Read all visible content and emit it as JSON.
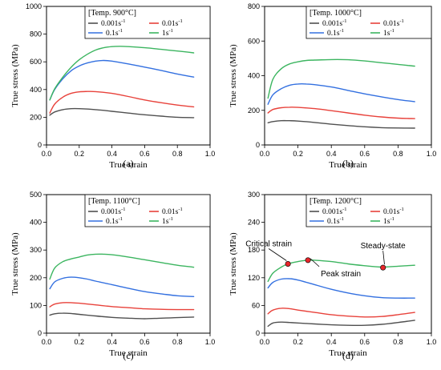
{
  "colors": {
    "0.001": "#505050",
    "0.01": "#e8423b",
    "0.1": "#3370e0",
    "1": "#3cb560",
    "marker": "#e8262b"
  },
  "chart_data": [
    {
      "type": "line",
      "panel_label": "(a)",
      "xlabel": "True strain",
      "ylabel": "True stress (MPa)",
      "xlim": [
        0.0,
        1.0
      ],
      "ylim": [
        0,
        1000
      ],
      "xticks": [
        "0.0",
        "0.2",
        "0.4",
        "0.6",
        "0.8",
        "1.0"
      ],
      "yticks": [
        "0",
        "200",
        "400",
        "600",
        "800",
        "1000"
      ],
      "grid": false,
      "legend": {
        "title": "[Temp. 900°C]",
        "placement": "top-right",
        "entries": [
          "0.001s",
          "0.01s",
          "0.1s",
          "1s"
        ]
      },
      "series": [
        {
          "name": "0.001s⁻¹",
          "color_key": "0.001",
          "x": [
            0.02,
            0.05,
            0.1,
            0.15,
            0.2,
            0.3,
            0.4,
            0.5,
            0.6,
            0.7,
            0.8,
            0.9
          ],
          "y": [
            215,
            238,
            255,
            262,
            262,
            255,
            243,
            230,
            218,
            208,
            200,
            197
          ]
        },
        {
          "name": "0.01s⁻¹",
          "color_key": "0.01",
          "x": [
            0.02,
            0.05,
            0.1,
            0.15,
            0.2,
            0.25,
            0.3,
            0.4,
            0.5,
            0.6,
            0.7,
            0.8,
            0.9
          ],
          "y": [
            230,
            295,
            345,
            372,
            383,
            386,
            385,
            372,
            350,
            325,
            305,
            288,
            275
          ]
        },
        {
          "name": "0.1s⁻¹",
          "color_key": "0.1",
          "x": [
            0.02,
            0.05,
            0.1,
            0.15,
            0.2,
            0.25,
            0.3,
            0.35,
            0.4,
            0.5,
            0.6,
            0.7,
            0.8,
            0.9
          ],
          "y": [
            325,
            400,
            478,
            535,
            570,
            592,
            605,
            610,
            605,
            585,
            562,
            538,
            512,
            490
          ]
        },
        {
          "name": "1s⁻¹",
          "color_key": "1",
          "x": [
            0.02,
            0.05,
            0.1,
            0.15,
            0.2,
            0.25,
            0.3,
            0.35,
            0.4,
            0.45,
            0.5,
            0.6,
            0.7,
            0.8,
            0.9
          ],
          "y": [
            325,
            405,
            490,
            560,
            615,
            655,
            685,
            702,
            710,
            712,
            710,
            702,
            690,
            678,
            665
          ]
        }
      ]
    },
    {
      "type": "line",
      "panel_label": "(b)",
      "xlabel": "True strain",
      "ylabel": "True stress (MPa)",
      "xlim": [
        0.0,
        1.0
      ],
      "ylim": [
        0,
        800
      ],
      "xticks": [
        "0.0",
        "0.2",
        "0.4",
        "0.6",
        "0.8",
        "1.0"
      ],
      "yticks": [
        "0",
        "200",
        "400",
        "600",
        "800"
      ],
      "grid": false,
      "legend": {
        "title": "[Temp. 1000°C]",
        "placement": "top-right",
        "entries": [
          "0.001s",
          "0.01s",
          "0.1s",
          "1s"
        ]
      },
      "series": [
        {
          "name": "0.001s⁻¹",
          "color_key": "0.001",
          "x": [
            0.02,
            0.05,
            0.1,
            0.15,
            0.2,
            0.3,
            0.4,
            0.5,
            0.6,
            0.7,
            0.8,
            0.9
          ],
          "y": [
            128,
            135,
            140,
            140,
            138,
            130,
            120,
            112,
            105,
            100,
            98,
            97
          ]
        },
        {
          "name": "0.01s⁻¹",
          "color_key": "0.01",
          "x": [
            0.02,
            0.05,
            0.1,
            0.15,
            0.2,
            0.3,
            0.4,
            0.5,
            0.6,
            0.7,
            0.8,
            0.9
          ],
          "y": [
            185,
            205,
            215,
            218,
            217,
            210,
            198,
            185,
            172,
            162,
            155,
            152
          ]
        },
        {
          "name": "0.1s⁻¹",
          "color_key": "0.1",
          "x": [
            0.02,
            0.05,
            0.1,
            0.15,
            0.2,
            0.25,
            0.3,
            0.4,
            0.5,
            0.6,
            0.7,
            0.8,
            0.9
          ],
          "y": [
            235,
            290,
            325,
            345,
            352,
            352,
            348,
            335,
            315,
            295,
            278,
            262,
            250
          ]
        },
        {
          "name": "1s⁻¹",
          "color_key": "1",
          "x": [
            0.02,
            0.05,
            0.1,
            0.15,
            0.2,
            0.25,
            0.3,
            0.4,
            0.5,
            0.6,
            0.7,
            0.8,
            0.9
          ],
          "y": [
            270,
            380,
            440,
            468,
            480,
            488,
            490,
            493,
            492,
            485,
            475,
            465,
            455
          ]
        }
      ]
    },
    {
      "type": "line",
      "panel_label": "(c)",
      "xlabel": "True strain",
      "ylabel": "True stress (MPa)",
      "xlim": [
        0.0,
        1.0
      ],
      "ylim": [
        0,
        500
      ],
      "xticks": [
        "0.0",
        "0.2",
        "0.4",
        "0.6",
        "0.8",
        "1.0"
      ],
      "yticks": [
        "0",
        "100",
        "200",
        "300",
        "400",
        "500"
      ],
      "grid": false,
      "legend": {
        "title": "[Temp. 1100°C]",
        "placement": "top-right",
        "entries": [
          "0.001s",
          "0.01s",
          "0.1s",
          "1s"
        ]
      },
      "series": [
        {
          "name": "0.001s⁻¹",
          "color_key": "0.001",
          "x": [
            0.02,
            0.05,
            0.1,
            0.15,
            0.2,
            0.3,
            0.4,
            0.5,
            0.6,
            0.7,
            0.8,
            0.9
          ],
          "y": [
            65,
            70,
            72,
            71,
            68,
            62,
            57,
            54,
            52,
            54,
            56,
            58
          ]
        },
        {
          "name": "0.01s⁻¹",
          "color_key": "0.01",
          "x": [
            0.02,
            0.05,
            0.1,
            0.15,
            0.2,
            0.3,
            0.4,
            0.5,
            0.6,
            0.7,
            0.8,
            0.9
          ],
          "y": [
            95,
            105,
            110,
            110,
            108,
            102,
            96,
            92,
            88,
            86,
            85,
            85
          ]
        },
        {
          "name": "0.1s⁻¹",
          "color_key": "0.1",
          "x": [
            0.02,
            0.05,
            0.1,
            0.15,
            0.2,
            0.25,
            0.3,
            0.4,
            0.5,
            0.6,
            0.7,
            0.8,
            0.9
          ],
          "y": [
            160,
            185,
            198,
            202,
            200,
            195,
            188,
            175,
            162,
            150,
            142,
            135,
            132
          ]
        },
        {
          "name": "1s⁻¹",
          "color_key": "1",
          "x": [
            0.02,
            0.05,
            0.1,
            0.15,
            0.2,
            0.25,
            0.3,
            0.35,
            0.4,
            0.5,
            0.6,
            0.7,
            0.8,
            0.9
          ],
          "y": [
            195,
            235,
            258,
            268,
            275,
            282,
            285,
            285,
            283,
            275,
            265,
            255,
            245,
            238
          ]
        }
      ]
    },
    {
      "type": "line",
      "panel_label": "(d)",
      "xlabel": "True strain",
      "ylabel": "True stress (MPa)",
      "xlim": [
        0.0,
        1.0
      ],
      "ylim": [
        0,
        300
      ],
      "xticks": [
        "0.0",
        "0.2",
        "0.4",
        "0.6",
        "0.8",
        "1.0"
      ],
      "yticks": [
        "0",
        "60",
        "120",
        "180",
        "240",
        "300"
      ],
      "grid": false,
      "legend": {
        "title": "[Temp. 1200°C]",
        "placement": "top-right",
        "entries": [
          "0.001s",
          "0.01s",
          "0.1s",
          "1s"
        ]
      },
      "series": [
        {
          "name": "0.001s⁻¹",
          "color_key": "0.001",
          "x": [
            0.02,
            0.05,
            0.1,
            0.15,
            0.2,
            0.3,
            0.4,
            0.5,
            0.6,
            0.7,
            0.8,
            0.9
          ],
          "y": [
            15,
            22,
            24,
            23,
            22,
            20,
            18,
            17,
            17,
            19,
            23,
            28
          ]
        },
        {
          "name": "0.01s⁻¹",
          "color_key": "0.01",
          "x": [
            0.02,
            0.05,
            0.1,
            0.15,
            0.2,
            0.3,
            0.4,
            0.5,
            0.6,
            0.7,
            0.8,
            0.9
          ],
          "y": [
            42,
            50,
            54,
            53,
            50,
            45,
            40,
            37,
            35,
            36,
            40,
            45
          ]
        },
        {
          "name": "0.1s⁻¹",
          "color_key": "0.1",
          "x": [
            0.02,
            0.05,
            0.1,
            0.15,
            0.2,
            0.3,
            0.4,
            0.5,
            0.6,
            0.7,
            0.8,
            0.9
          ],
          "y": [
            98,
            110,
            117,
            118,
            115,
            105,
            95,
            87,
            81,
            77,
            76,
            76
          ]
        },
        {
          "name": "1s⁻¹",
          "color_key": "1",
          "x": [
            0.02,
            0.05,
            0.1,
            0.14,
            0.2,
            0.26,
            0.3,
            0.4,
            0.5,
            0.6,
            0.7,
            0.8,
            0.9
          ],
          "y": [
            112,
            130,
            143,
            150,
            155,
            158,
            158,
            155,
            150,
            146,
            143,
            145,
            147
          ]
        }
      ],
      "annotations": [
        {
          "text": "Critical strain",
          "point": [
            0.14,
            150
          ]
        },
        {
          "text": "Peak strain",
          "point": [
            0.26,
            158
          ]
        },
        {
          "text": "Steady-state",
          "point": [
            0.71,
            142
          ]
        }
      ]
    }
  ]
}
